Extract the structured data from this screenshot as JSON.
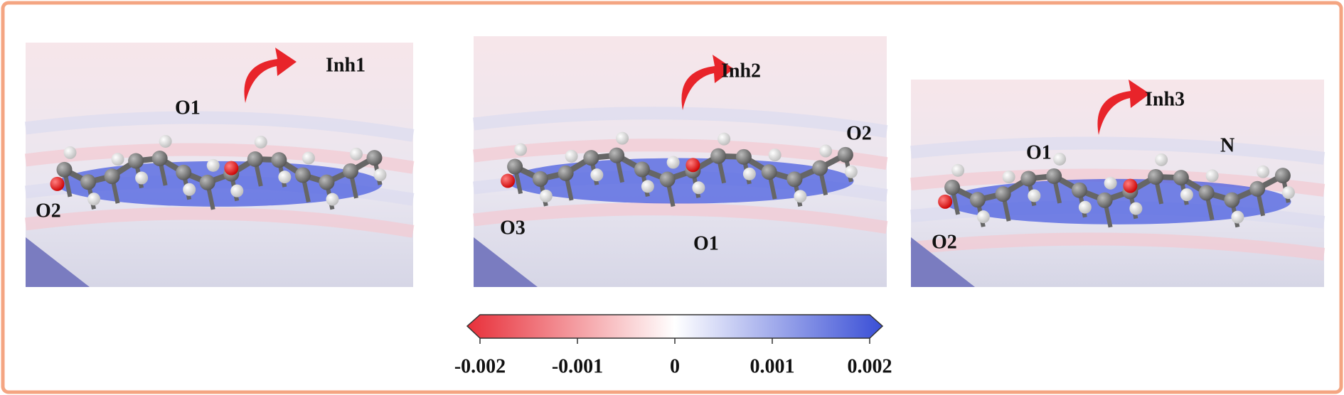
{
  "panels": [
    {
      "label": "Inh1",
      "atoms": [
        "O1",
        "O2"
      ]
    },
    {
      "label": "Inh2",
      "atoms": [
        "O1",
        "O2",
        "O3"
      ]
    },
    {
      "label": "Inh3",
      "atoms": [
        "O1",
        "O2",
        "N"
      ]
    }
  ],
  "colorbar": {
    "lim": [
      -0.002,
      0.002
    ],
    "ticks": [
      -0.002,
      -0.001,
      0,
      0.001,
      0.002
    ]
  }
}
